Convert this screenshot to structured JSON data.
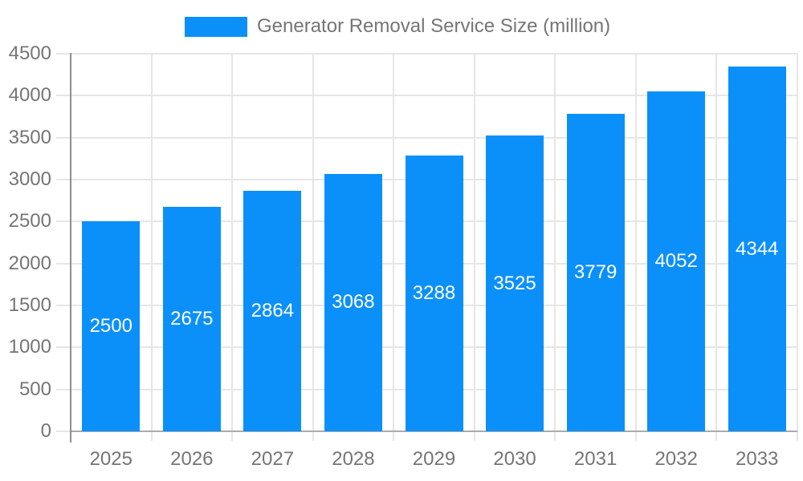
{
  "legend": {
    "label": "Generator Removal Service Size (million)"
  },
  "colors": {
    "bar": "#0b90fa",
    "grid": "#e6e6e6",
    "axis": "#8f8f8f",
    "baseline": "#ababab",
    "text": "#757575",
    "bar_label": "#ffffff",
    "background": "#ffffff"
  },
  "chart_data": {
    "type": "bar",
    "title": "Generator Removal Service Size (million)",
    "categories": [
      "2025",
      "2026",
      "2027",
      "2028",
      "2029",
      "2030",
      "2031",
      "2032",
      "2033"
    ],
    "values": [
      2500,
      2675,
      2864,
      3068,
      3288,
      3525,
      3779,
      4052,
      4344
    ],
    "series": [
      {
        "name": "Generator Removal Service Size (million)",
        "values": [
          2500,
          2675,
          2864,
          3068,
          3288,
          3525,
          3779,
          4052,
          4344
        ]
      }
    ],
    "xlabel": "",
    "ylabel": "",
    "ylim": [
      0,
      4500
    ],
    "ytick_step": 500,
    "yticks": [
      0,
      500,
      1000,
      1500,
      2000,
      2500,
      3000,
      3500,
      4000,
      4500
    ],
    "grid": true,
    "legend_position": "top",
    "bar_value_labels": true
  }
}
